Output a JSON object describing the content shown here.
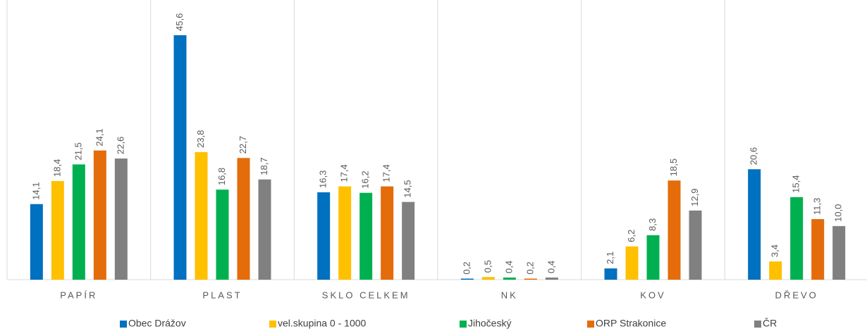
{
  "chart_data": {
    "type": "bar",
    "categories": [
      "PAPÍR",
      "PLAST",
      "SKLO CELKEM",
      "NK",
      "KOV",
      "DŘEVO"
    ],
    "series": [
      {
        "name": "Obec Drážov",
        "color": "#0070c0",
        "values": [
          14.1,
          45.6,
          16.3,
          0.2,
          2.1,
          20.6
        ],
        "value_labels": [
          "14,1",
          "45,6",
          "16,3",
          "0,2",
          "2,1",
          "20,6"
        ]
      },
      {
        "name": "vel.skupina 0 - 1000",
        "color": "#ffc000",
        "values": [
          18.4,
          23.8,
          17.4,
          0.5,
          6.2,
          3.4
        ],
        "value_labels": [
          "18,4",
          "23,8",
          "17,4",
          "0,5",
          "6,2",
          "3,4"
        ]
      },
      {
        "name": "Jihočeský",
        "color": "#00b050",
        "values": [
          21.5,
          16.8,
          16.2,
          0.4,
          8.3,
          15.4
        ],
        "value_labels": [
          "21,5",
          "16,8",
          "16,2",
          "0,4",
          "8,3",
          "15,4"
        ]
      },
      {
        "name": "ORP Strakonice",
        "color": "#e46c0a",
        "values": [
          24.1,
          22.7,
          17.4,
          0.2,
          18.5,
          11.3
        ],
        "value_labels": [
          "24,1",
          "22,7",
          "17,4",
          "0,2",
          "18,5",
          "11,3"
        ]
      },
      {
        "name": "ČR",
        "color": "#808080",
        "values": [
          22.6,
          18.7,
          14.5,
          0.4,
          12.9,
          10.0
        ],
        "value_labels": [
          "22,6",
          "18,7",
          "14,5",
          "0,4",
          "12,9",
          "10,0"
        ]
      }
    ],
    "legend": "bottom"
  }
}
